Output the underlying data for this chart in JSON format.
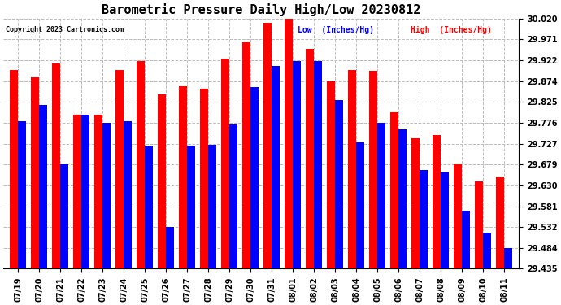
{
  "title": "Barometric Pressure Daily High/Low 20230812",
  "copyright": "Copyright 2023 Cartronics.com",
  "legend_low": "Low  (Inches/Hg)",
  "legend_high": "High  (Inches/Hg)",
  "dates": [
    "07/19",
    "07/20",
    "07/21",
    "07/22",
    "07/23",
    "07/24",
    "07/25",
    "07/26",
    "07/27",
    "07/28",
    "07/29",
    "07/30",
    "07/31",
    "08/01",
    "08/02",
    "08/03",
    "08/04",
    "08/05",
    "08/06",
    "08/07",
    "08/08",
    "08/09",
    "08/10",
    "08/11"
  ],
  "high_values": [
    29.9,
    29.882,
    29.915,
    29.795,
    29.796,
    29.9,
    29.92,
    29.843,
    29.862,
    29.856,
    29.927,
    29.965,
    30.01,
    30.02,
    29.95,
    29.874,
    29.9,
    29.898,
    29.8,
    29.74,
    29.748,
    29.679,
    29.64,
    29.649
  ],
  "low_values": [
    29.78,
    29.818,
    29.679,
    29.795,
    29.777,
    29.78,
    29.72,
    29.532,
    29.722,
    29.724,
    29.773,
    29.86,
    29.91,
    29.92,
    29.92,
    29.83,
    29.73,
    29.776,
    29.76,
    29.665,
    29.66,
    29.57,
    29.519,
    29.484
  ],
  "ymin": 29.435,
  "ymax": 30.02,
  "yticks": [
    29.435,
    29.484,
    29.532,
    29.581,
    29.63,
    29.679,
    29.727,
    29.776,
    29.825,
    29.874,
    29.922,
    29.971,
    30.02
  ],
  "bar_color_high": "#ff0000",
  "bar_color_low": "#0000ff",
  "background_color": "#ffffff",
  "grid_color": "#bbbbbb",
  "title_fontsize": 11,
  "tick_fontsize": 7,
  "bar_width": 0.38
}
